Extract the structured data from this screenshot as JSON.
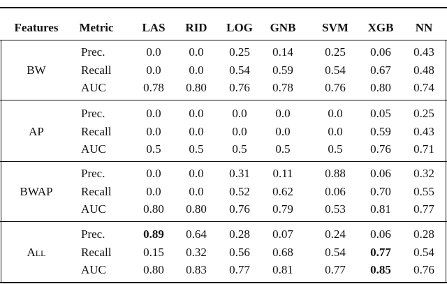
{
  "table": {
    "header": [
      "Features",
      "Metric",
      "LAS",
      "RID",
      "LOG",
      "GNB",
      "SVM",
      "XGB",
      "NN"
    ],
    "groups": [
      {
        "feature": "BW",
        "rows": [
          {
            "metric": "Prec.",
            "values": [
              "0.0",
              "0.0",
              "0.25",
              "0.14",
              "0.25",
              "0.06",
              "0.43"
            ],
            "bold": []
          },
          {
            "metric": "Recall",
            "values": [
              "0.0",
              "0.0",
              "0.54",
              "0.59",
              "0.54",
              "0.67",
              "0.48"
            ],
            "bold": []
          },
          {
            "metric": "AUC",
            "values": [
              "0.78",
              "0.80",
              "0.76",
              "0.78",
              "0.76",
              "0.80",
              "0.74"
            ],
            "bold": []
          }
        ]
      },
      {
        "feature": "AP",
        "rows": [
          {
            "metric": "Prec.",
            "values": [
              "0.0",
              "0.0",
              "0.0",
              "0.0",
              "0.0",
              "0.05",
              "0.25"
            ],
            "bold": []
          },
          {
            "metric": "Recall",
            "values": [
              "0.0",
              "0.0",
              "0.0",
              "0.0",
              "0.0",
              "0.59",
              "0.43"
            ],
            "bold": []
          },
          {
            "metric": "AUC",
            "values": [
              "0.5",
              "0.5",
              "0.5",
              "0.5",
              "0.5",
              "0.76",
              "0.71"
            ],
            "bold": []
          }
        ]
      },
      {
        "feature": "BWAP",
        "rows": [
          {
            "metric": "Prec.",
            "values": [
              "0.0",
              "0.0",
              "0.31",
              "0.11",
              "0.88",
              "0.06",
              "0.32"
            ],
            "bold": []
          },
          {
            "metric": "Recall",
            "values": [
              "0.0",
              "0.0",
              "0.52",
              "0.62",
              "0.06",
              "0.70",
              "0.55"
            ],
            "bold": []
          },
          {
            "metric": "AUC",
            "values": [
              "0.80",
              "0.80",
              "0.76",
              "0.79",
              "0.53",
              "0.81",
              "0.77"
            ],
            "bold": []
          }
        ]
      },
      {
        "feature": "All",
        "small_caps": true,
        "rows": [
          {
            "metric": "Prec.",
            "values": [
              "0.89",
              "0.64",
              "0.28",
              "0.07",
              "0.24",
              "0.06",
              "0.28"
            ],
            "bold": [
              0
            ]
          },
          {
            "metric": "Recall",
            "values": [
              "0.15",
              "0.32",
              "0.56",
              "0.68",
              "0.54",
              "0.77",
              "0.54"
            ],
            "bold": [
              5
            ]
          },
          {
            "metric": "AUC",
            "values": [
              "0.80",
              "0.83",
              "0.77",
              "0.81",
              "0.77",
              "0.85",
              "0.76"
            ],
            "bold": [
              5
            ]
          }
        ]
      }
    ]
  }
}
